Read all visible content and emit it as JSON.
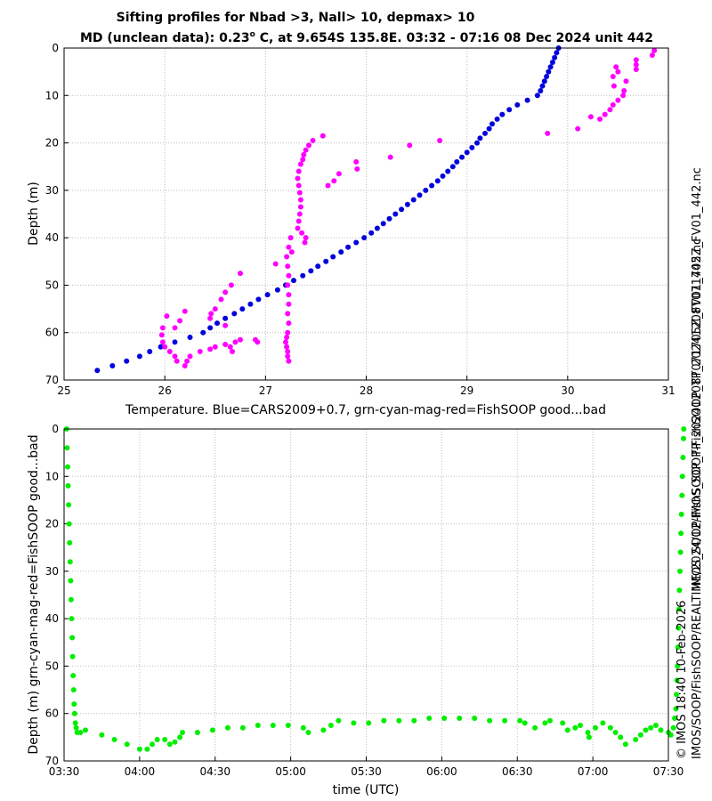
{
  "figure": {
    "title_line1": "Sifting profiles for Nbad >3, Nall> 10, depmax> 10",
    "title_line2_prefix": "MD (unclean data): 0.23",
    "title_line2_sup": "o",
    "title_line2_suffix": " C, at 9.654S 135.8E. 03:32 - 07:16 08 Dec 2024 unit 442",
    "right_label_outer": "IMOS_SOOP-FishSOOP_TP_20241208T071705Z_FV01_442.nc",
    "right_label_inner": "IMOS/SOOP/FishSOOP/REALTIME/2024/12/IMOS_SOOP-FishSOOP_TP_20241208T071705Z_FV01_442.nc",
    "right_label_copyright": "© IMOS 18:40 10-Feb-2026"
  },
  "colors": {
    "cars": "#0000dd",
    "fishsoop_bad": "#ff00ff",
    "fishsoop_good": "#00ee00",
    "grid": "#bbbbbb"
  },
  "chart_data": [
    {
      "type": "scatter",
      "title": "",
      "xlabel": "Temperature. Blue=CARS2009+0.7, grn-cyan-mag-red=FishSOOP good...bad",
      "ylabel": "Depth (m)",
      "xlim": [
        25,
        31
      ],
      "ylim": [
        70,
        0
      ],
      "xticks": [
        "25",
        "26",
        "27",
        "28",
        "29",
        "30",
        "31"
      ],
      "yticks": [
        "0",
        "10",
        "20",
        "30",
        "40",
        "50",
        "60",
        "70"
      ],
      "grid": true,
      "series": [
        {
          "color": "blue",
          "points": [
            [
              29.91,
              0
            ],
            [
              29.89,
              1
            ],
            [
              29.87,
              2
            ],
            [
              29.85,
              3
            ],
            [
              29.83,
              4
            ],
            [
              29.81,
              5
            ],
            [
              29.79,
              6
            ],
            [
              29.77,
              7
            ],
            [
              29.75,
              8
            ],
            [
              29.73,
              9
            ],
            [
              29.7,
              10
            ],
            [
              29.6,
              11
            ],
            [
              29.5,
              12
            ],
            [
              29.42,
              13
            ],
            [
              29.35,
              14
            ],
            [
              29.3,
              15
            ],
            [
              29.25,
              16
            ],
            [
              29.22,
              17
            ],
            [
              29.18,
              18
            ],
            [
              29.13,
              19
            ],
            [
              29.1,
              20
            ],
            [
              29.05,
              21
            ],
            [
              29.0,
              22
            ],
            [
              28.95,
              23
            ],
            [
              28.9,
              24
            ],
            [
              28.86,
              25
            ],
            [
              28.81,
              26
            ],
            [
              28.76,
              27
            ],
            [
              28.71,
              28
            ],
            [
              28.65,
              29
            ],
            [
              28.59,
              30
            ],
            [
              28.53,
              31
            ],
            [
              28.47,
              32
            ],
            [
              28.41,
              33
            ],
            [
              28.35,
              34
            ],
            [
              28.29,
              35
            ],
            [
              28.23,
              36
            ],
            [
              28.17,
              37
            ],
            [
              28.11,
              38
            ],
            [
              28.05,
              39
            ],
            [
              27.98,
              40
            ],
            [
              27.9,
              41
            ],
            [
              27.82,
              42
            ],
            [
              27.75,
              43
            ],
            [
              27.67,
              44
            ],
            [
              27.6,
              45
            ],
            [
              27.52,
              46
            ],
            [
              27.45,
              47
            ],
            [
              27.37,
              48
            ],
            [
              27.28,
              49
            ],
            [
              27.2,
              50
            ],
            [
              27.12,
              51
            ],
            [
              27.02,
              52
            ],
            [
              26.93,
              53
            ],
            [
              26.85,
              54
            ],
            [
              26.77,
              55
            ],
            [
              26.69,
              56
            ],
            [
              26.6,
              57
            ],
            [
              26.52,
              58
            ],
            [
              26.45,
              59
            ],
            [
              26.38,
              60
            ],
            [
              26.25,
              61
            ],
            [
              26.1,
              62
            ],
            [
              25.96,
              63
            ],
            [
              25.85,
              64
            ],
            [
              25.75,
              65
            ],
            [
              25.62,
              66
            ],
            [
              25.48,
              67
            ],
            [
              25.33,
              68
            ]
          ]
        },
        {
          "color": "magenta",
          "points": [
            [
              30.86,
              0.5
            ],
            [
              30.84,
              1.5
            ],
            [
              30.68,
              2.5
            ],
            [
              30.68,
              3.5
            ],
            [
              30.48,
              4
            ],
            [
              30.68,
              4.5
            ],
            [
              30.5,
              5
            ],
            [
              30.45,
              6
            ],
            [
              30.58,
              7
            ],
            [
              30.46,
              8
            ],
            [
              30.56,
              9
            ],
            [
              30.55,
              10
            ],
            [
              30.5,
              11
            ],
            [
              30.45,
              12
            ],
            [
              30.42,
              13
            ],
            [
              30.37,
              14
            ],
            [
              30.23,
              14.5
            ],
            [
              30.32,
              15
            ],
            [
              30.1,
              17
            ],
            [
              29.8,
              18
            ],
            [
              28.73,
              19.5
            ],
            [
              28.43,
              20.5
            ],
            [
              28.24,
              23
            ],
            [
              27.9,
              24
            ],
            [
              27.91,
              25.5
            ],
            [
              27.73,
              26.5
            ],
            [
              27.68,
              28
            ],
            [
              27.62,
              29
            ],
            [
              27.57,
              18.5
            ],
            [
              27.47,
              19.5
            ],
            [
              27.43,
              20.5
            ],
            [
              27.4,
              21.5
            ],
            [
              27.38,
              22.5
            ],
            [
              27.37,
              23.5
            ],
            [
              27.35,
              24.5
            ],
            [
              27.33,
              26
            ],
            [
              27.32,
              27.5
            ],
            [
              27.33,
              29
            ],
            [
              27.34,
              30.5
            ],
            [
              27.35,
              32
            ],
            [
              27.35,
              33.5
            ],
            [
              27.34,
              35
            ],
            [
              27.33,
              36.5
            ],
            [
              27.32,
              38
            ],
            [
              27.36,
              39
            ],
            [
              27.4,
              40
            ],
            [
              27.39,
              41
            ],
            [
              27.25,
              40
            ],
            [
              27.23,
              42
            ],
            [
              27.26,
              43
            ],
            [
              27.1,
              45.5
            ],
            [
              27.21,
              44
            ],
            [
              27.22,
              46
            ],
            [
              27.23,
              48
            ],
            [
              27.22,
              50
            ],
            [
              27.23,
              52
            ],
            [
              27.23,
              54
            ],
            [
              27.22,
              56
            ],
            [
              27.23,
              58
            ],
            [
              27.22,
              60
            ],
            [
              27.21,
              61
            ],
            [
              27.2,
              62
            ],
            [
              27.21,
              63
            ],
            [
              27.22,
              64
            ],
            [
              27.22,
              65
            ],
            [
              27.23,
              66
            ],
            [
              26.75,
              47.5
            ],
            [
              26.66,
              50
            ],
            [
              26.6,
              51.5
            ],
            [
              26.56,
              53
            ],
            [
              26.5,
              55
            ],
            [
              26.46,
              56
            ],
            [
              26.45,
              57
            ],
            [
              26.6,
              58.5
            ],
            [
              26.2,
              55.5
            ],
            [
              26.02,
              56.5
            ],
            [
              26.15,
              57.5
            ],
            [
              26.1,
              59
            ],
            [
              25.98,
              59
            ],
            [
              25.97,
              60.5
            ],
            [
              25.98,
              62
            ],
            [
              26.0,
              63
            ],
            [
              26.05,
              64
            ],
            [
              26.1,
              65
            ],
            [
              26.12,
              66
            ],
            [
              26.2,
              67
            ],
            [
              26.22,
              66
            ],
            [
              26.25,
              65
            ],
            [
              26.35,
              64
            ],
            [
              26.45,
              63.5
            ],
            [
              26.5,
              63
            ],
            [
              26.6,
              62.5
            ],
            [
              26.65,
              63
            ],
            [
              26.67,
              64
            ],
            [
              26.7,
              62
            ],
            [
              26.75,
              61.5
            ],
            [
              26.9,
              61.5
            ],
            [
              26.92,
              62
            ]
          ]
        }
      ]
    },
    {
      "type": "scatter",
      "title": "",
      "xlabel": "time (UTC)",
      "ylabel": "Depth (m) grn-cyan-mag-red=FishSOOP good...bad",
      "xlim": [
        210,
        450
      ],
      "ylim": [
        70,
        0
      ],
      "xticks": [
        "03:30",
        "04:00",
        "04:30",
        "05:00",
        "05:30",
        "06:00",
        "06:30",
        "07:00",
        "07:30"
      ],
      "yticks": [
        "0",
        "10",
        "20",
        "30",
        "40",
        "50",
        "60",
        "70"
      ],
      "grid": true,
      "series": [
        {
          "color": "green",
          "points": [
            [
              211.0,
              0
            ],
            [
              211.2,
              4
            ],
            [
              211.4,
              8
            ],
            [
              211.6,
              12
            ],
            [
              211.8,
              16
            ],
            [
              212.0,
              20
            ],
            [
              212.2,
              24
            ],
            [
              212.4,
              28
            ],
            [
              212.6,
              32
            ],
            [
              212.8,
              36
            ],
            [
              213.0,
              40
            ],
            [
              213.2,
              44
            ],
            [
              213.4,
              48
            ],
            [
              213.6,
              52
            ],
            [
              213.8,
              55
            ],
            [
              214.0,
              58
            ],
            [
              214.2,
              60
            ],
            [
              214.5,
              62
            ],
            [
              214.8,
              63
            ],
            [
              215.2,
              64
            ],
            [
              216.5,
              64
            ],
            [
              218.5,
              63.5
            ],
            [
              225,
              64.5
            ],
            [
              230,
              65.5
            ],
            [
              235,
              66.5
            ],
            [
              240,
              67.5
            ],
            [
              243,
              67.5
            ],
            [
              245,
              66.5
            ],
            [
              247,
              65.5
            ],
            [
              250,
              65.5
            ],
            [
              252,
              66.5
            ],
            [
              254,
              66
            ],
            [
              256,
              65
            ],
            [
              257,
              64
            ],
            [
              263,
              64
            ],
            [
              269,
              63.5
            ],
            [
              275,
              63
            ],
            [
              281,
              63
            ],
            [
              287,
              62.5
            ],
            [
              293,
              62.5
            ],
            [
              299,
              62.5
            ],
            [
              305,
              63
            ],
            [
              307,
              64
            ],
            [
              313,
              63.5
            ],
            [
              316,
              62.5
            ],
            [
              319,
              61.5
            ],
            [
              325,
              62
            ],
            [
              331,
              62
            ],
            [
              337,
              61.5
            ],
            [
              343,
              61.5
            ],
            [
              349,
              61.5
            ],
            [
              355,
              61
            ],
            [
              361,
              61
            ],
            [
              367,
              61
            ],
            [
              373,
              61
            ],
            [
              379,
              61.5
            ],
            [
              385,
              61.5
            ],
            [
              391,
              61.5
            ],
            [
              393,
              62
            ],
            [
              397,
              63
            ],
            [
              401,
              62
            ],
            [
              403,
              61.5
            ],
            [
              408,
              62
            ],
            [
              410,
              63.5
            ],
            [
              413,
              63
            ],
            [
              415,
              62.5
            ],
            [
              418,
              64
            ],
            [
              418.5,
              65
            ],
            [
              421,
              63
            ],
            [
              424,
              62
            ],
            [
              427,
              63
            ],
            [
              429,
              64
            ],
            [
              431,
              65
            ],
            [
              433,
              66.5
            ],
            [
              437,
              65.5
            ],
            [
              439,
              64.5
            ],
            [
              441,
              63.5
            ],
            [
              443,
              63
            ],
            [
              445,
              62.5
            ],
            [
              447,
              63.5
            ],
            [
              450,
              64
            ],
            [
              451,
              64.5
            ],
            [
              452,
              63
            ],
            [
              452.5,
              61
            ],
            [
              453,
              59
            ],
            [
              453.2,
              56
            ],
            [
              453.4,
              53
            ],
            [
              453.6,
              50
            ],
            [
              453.8,
              46
            ],
            [
              454.0,
              42
            ],
            [
              454.2,
              38
            ],
            [
              454.4,
              34
            ],
            [
              454.6,
              30
            ],
            [
              454.8,
              26
            ],
            [
              455.0,
              22
            ],
            [
              455.2,
              18
            ],
            [
              455.4,
              14
            ],
            [
              455.6,
              10
            ],
            [
              455.8,
              6
            ],
            [
              456.0,
              2
            ],
            [
              456.1,
              0
            ]
          ]
        }
      ]
    }
  ]
}
